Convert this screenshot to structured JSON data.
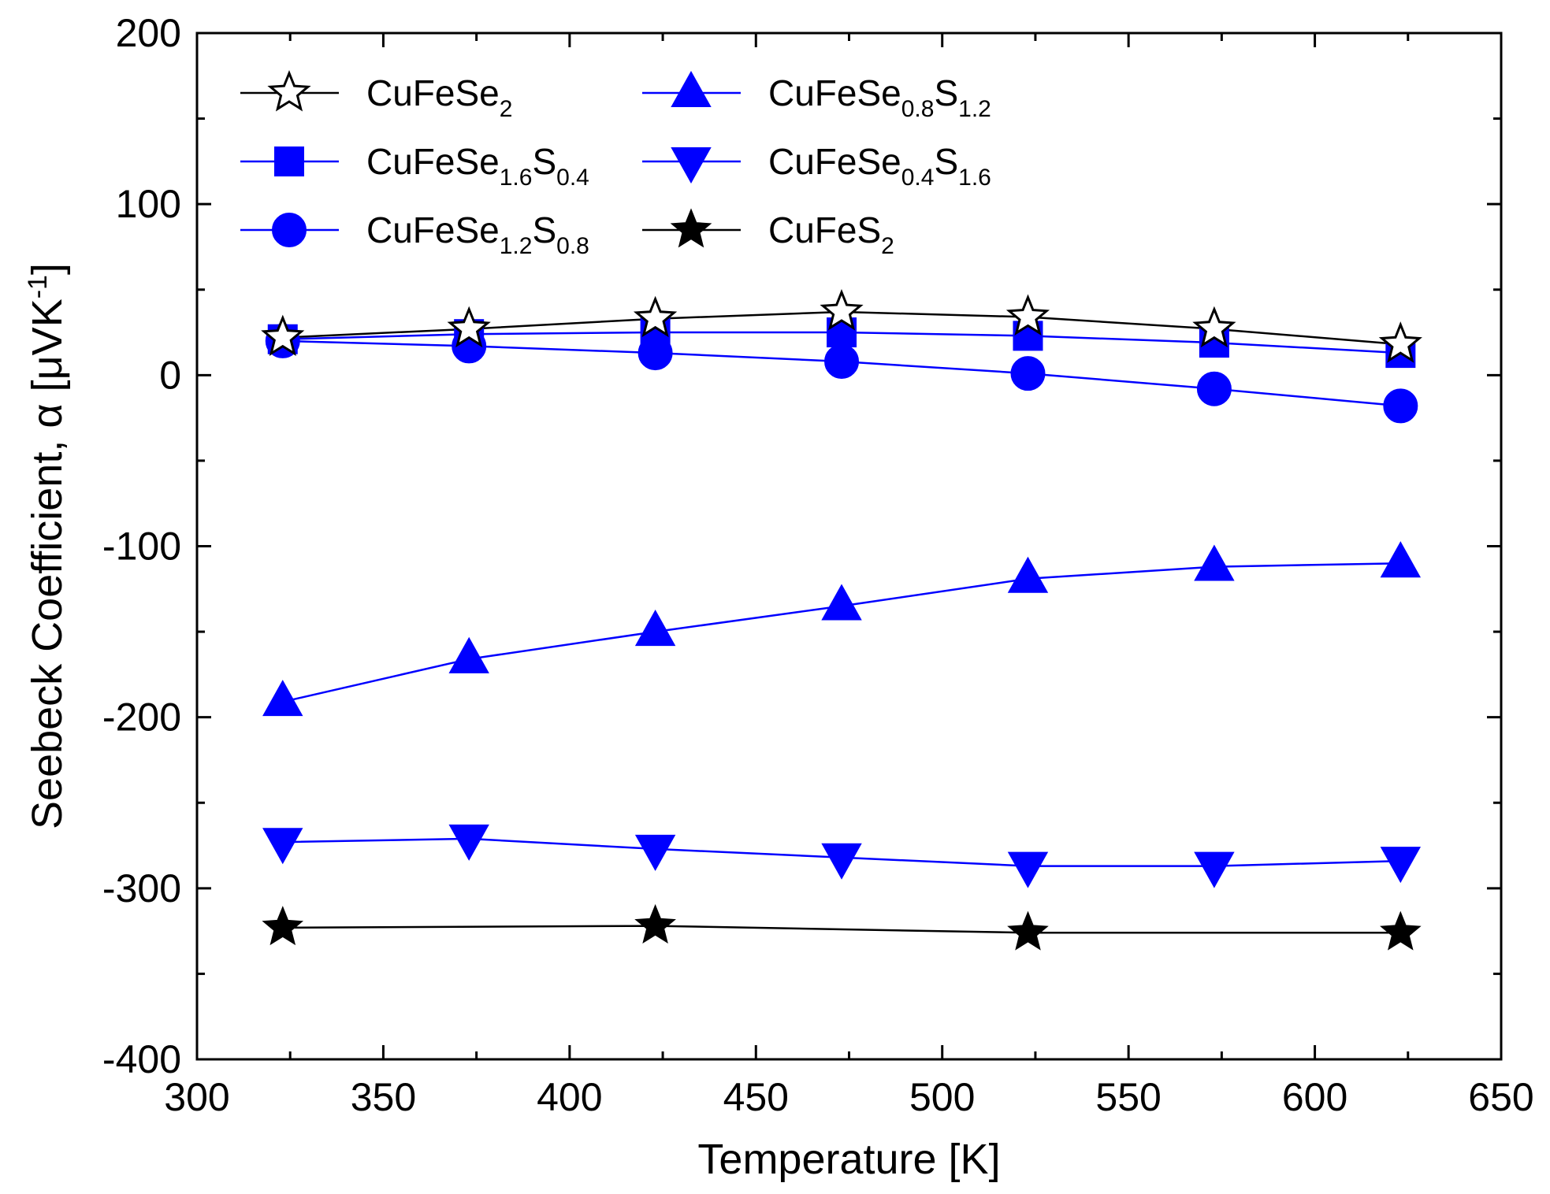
{
  "chart_data": {
    "type": "line",
    "title": "",
    "xlabel": "Temperature [K]",
    "ylabel": "Seebeck Coefficient, α [μVK⁻¹]",
    "ylabel_parts": {
      "main": "Seebeck Coefficient, α [μVK",
      "sup": "-1",
      "close": "]"
    },
    "xlim": [
      300,
      650
    ],
    "ylim": [
      -400,
      200
    ],
    "xticks": [
      300,
      350,
      400,
      450,
      500,
      550,
      600,
      650
    ],
    "yticks": [
      -400,
      -300,
      -200,
      -100,
      0,
      100,
      200
    ],
    "grid": false,
    "legend_position": "top-left",
    "series": [
      {
        "name": "CuFeSe2",
        "label_parts": [
          [
            "CuFeSe",
            ""
          ],
          [
            "2",
            "sub"
          ]
        ],
        "marker": "star-open",
        "line_color": "#000000",
        "marker_fill": "#ffffff",
        "marker_stroke": "#000000",
        "x": [
          323,
          373,
          423,
          473,
          523,
          573,
          623
        ],
        "y": [
          22,
          27,
          33,
          37,
          34,
          27,
          18
        ]
      },
      {
        "name": "CuFeSe1.6S0.4",
        "label_parts": [
          [
            "CuFeSe",
            ""
          ],
          [
            "1.6",
            "sub"
          ],
          [
            "S",
            ""
          ],
          [
            "0.4",
            "sub"
          ]
        ],
        "marker": "square",
        "line_color": "#0000ff",
        "marker_fill": "#0000ff",
        "marker_stroke": "#0000ff",
        "x": [
          323,
          373,
          423,
          473,
          523,
          573,
          623
        ],
        "y": [
          21,
          24,
          25,
          25,
          23,
          19,
          13
        ]
      },
      {
        "name": "CuFeSe1.2S0.8",
        "label_parts": [
          [
            "CuFeSe",
            ""
          ],
          [
            "1.2",
            "sub"
          ],
          [
            "S",
            ""
          ],
          [
            "0.8",
            "sub"
          ]
        ],
        "marker": "circle",
        "line_color": "#0000ff",
        "marker_fill": "#0000ff",
        "marker_stroke": "#0000ff",
        "x": [
          323,
          373,
          423,
          473,
          523,
          573,
          623
        ],
        "y": [
          20,
          17,
          13,
          8,
          1,
          -8,
          -18
        ]
      },
      {
        "name": "CuFeSe0.8S1.2",
        "label_parts": [
          [
            "CuFeSe",
            ""
          ],
          [
            "0.8",
            "sub"
          ],
          [
            "S",
            ""
          ],
          [
            "1.2",
            "sub"
          ]
        ],
        "marker": "triangle-up",
        "line_color": "#0000ff",
        "marker_fill": "#0000ff",
        "marker_stroke": "#0000ff",
        "x": [
          323,
          373,
          423,
          473,
          523,
          573,
          623
        ],
        "y": [
          -191,
          -166,
          -150,
          -135,
          -119,
          -112,
          -110
        ]
      },
      {
        "name": "CuFeSe0.4S1.6",
        "label_parts": [
          [
            "CuFeSe",
            ""
          ],
          [
            "0.4",
            "sub"
          ],
          [
            "S",
            ""
          ],
          [
            "1.6",
            "sub"
          ]
        ],
        "marker": "triangle-down",
        "line_color": "#0000ff",
        "marker_fill": "#0000ff",
        "marker_stroke": "#0000ff",
        "x": [
          323,
          373,
          423,
          473,
          523,
          573,
          623
        ],
        "y": [
          -273,
          -271,
          -277,
          -282,
          -287,
          -287,
          -284
        ]
      },
      {
        "name": "CuFeS2",
        "label_parts": [
          [
            "CuFeS",
            ""
          ],
          [
            "2",
            "sub"
          ]
        ],
        "marker": "star-filled",
        "line_color": "#000000",
        "marker_fill": "#000000",
        "marker_stroke": "#000000",
        "x": [
          323,
          423,
          523,
          623
        ],
        "y": [
          -323,
          -322,
          -326,
          -326
        ]
      }
    ]
  }
}
